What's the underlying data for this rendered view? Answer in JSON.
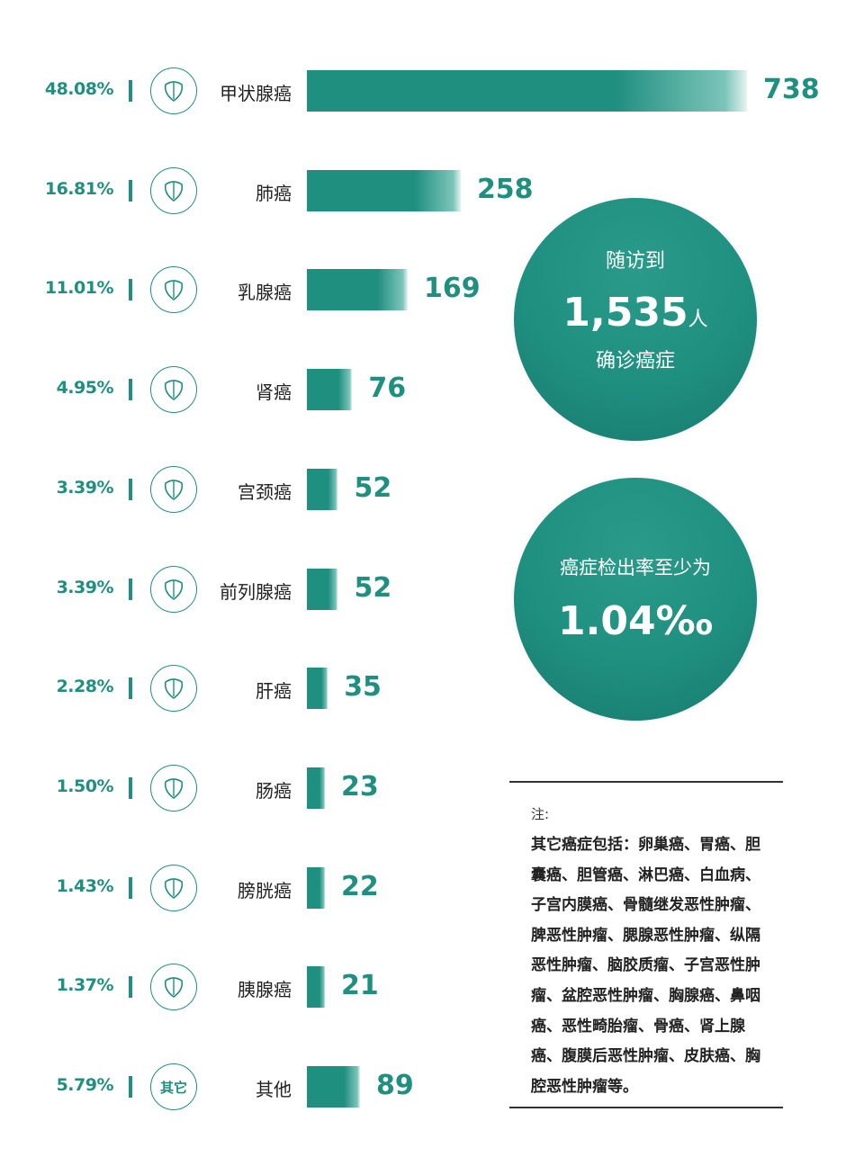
{
  "chart_data": {
    "type": "bar",
    "orientation": "horizontal",
    "categories": [
      "甲状腺癌",
      "肺癌",
      "乳腺癌",
      "肾癌",
      "宫颈癌",
      "前列腺癌",
      "肝癌",
      "肠癌",
      "膀胱癌",
      "胰腺癌",
      "其他"
    ],
    "values": [
      738,
      258,
      169,
      76,
      52,
      52,
      35,
      23,
      22,
      21,
      89
    ],
    "percents": [
      "48.08%",
      "16.81%",
      "11.01%",
      "4.95%",
      "3.39%",
      "3.39%",
      "2.28%",
      "1.50%",
      "1.43%",
      "1.37%",
      "5.79%"
    ],
    "icons": [
      "thyroid-icon",
      "lungs-icon",
      "breast-icon",
      "kidney-icon",
      "uterus-icon",
      "prostate-icon",
      "liver-icon",
      "intestine-icon",
      "bladder-icon",
      "pancreas-icon",
      "other-icon"
    ],
    "other_icon_text": "其它",
    "xlim": [
      0,
      738
    ],
    "color": "#1f8f80"
  },
  "stat1": {
    "top": "随访到",
    "number": "1,535",
    "unit": "人",
    "bottom": "确诊癌症"
  },
  "stat2": {
    "top": "癌症检出率至少为",
    "number": "1.04‰"
  },
  "note": {
    "heading": "注:",
    "body": "其它癌症包括：卵巢癌、胃癌、胆囊癌、胆管癌、淋巴癌、白血病、子宫内膜癌、骨髓继发恶性肿瘤、脾恶性肿瘤、腮腺恶性肿瘤、纵隔恶性肿瘤、脑胶质瘤、子宫恶性肿瘤、盆腔恶性肿瘤、胸腺癌、鼻咽癌、恶性畸胎瘤、骨癌、肾上腺癌、腹膜后恶性肿瘤、皮肤癌、胸腔恶性肿瘤等。"
  }
}
